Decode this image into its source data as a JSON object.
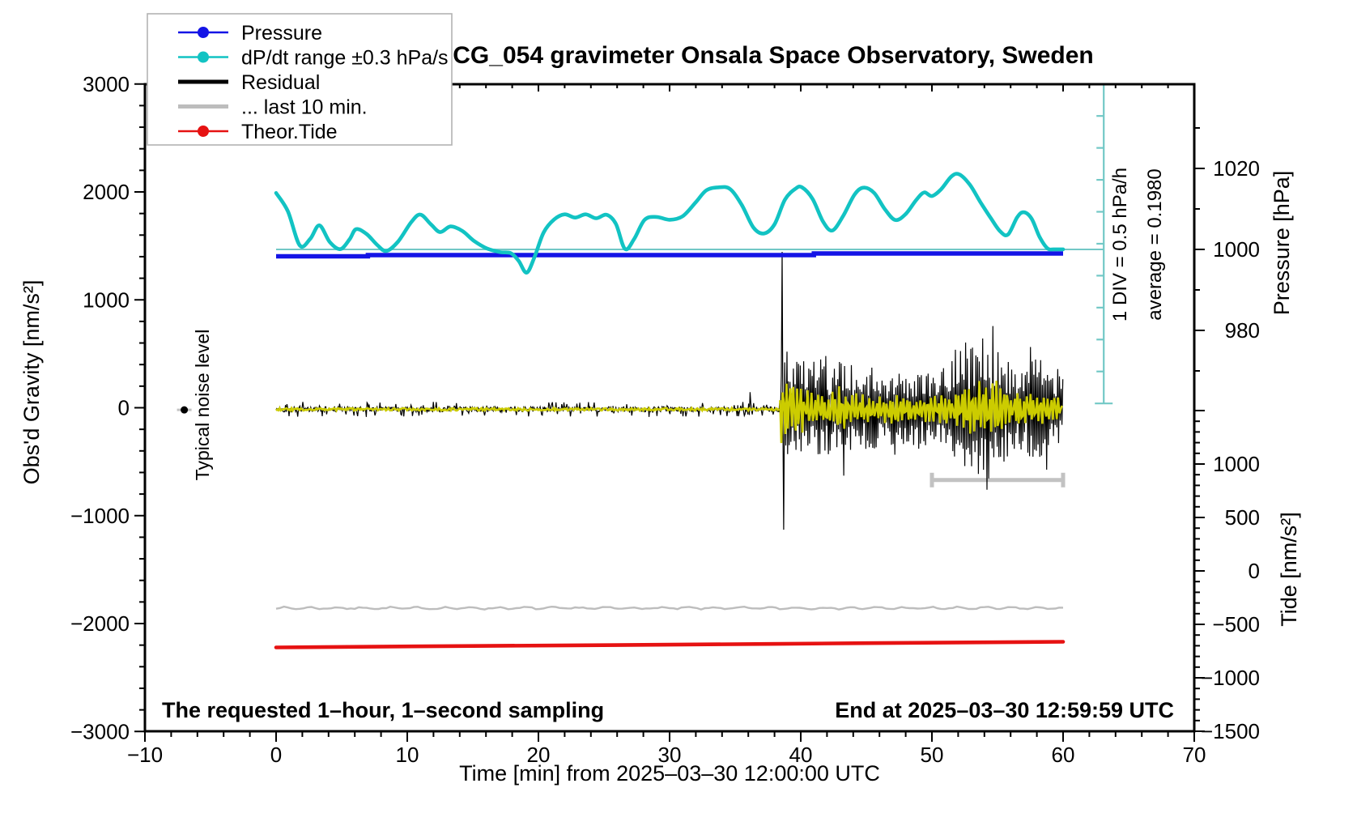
{
  "title": "SCG_054 gravimeter Onsala Space Observatory, Sweden",
  "colors": {
    "pressure_blue": "#1414e6",
    "dpdt_cyan": "#12c3c3",
    "ruler_teal": "#72c8c6",
    "residual_black": "#000000",
    "residual_yellow": "#cccc00",
    "last10_gray": "#bdbdbd",
    "bar_gray": "#c2c2c2",
    "tide_red": "#e61212",
    "legend_border": "#b3b3b3",
    "frame": "#000000"
  },
  "legend": {
    "entries": [
      {
        "label": "Pressure",
        "color_key": "pressure_blue",
        "marker": true,
        "thick": false
      },
      {
        "label": "dP/dt range ±0.3 hPa/s",
        "color_key": "dpdt_cyan",
        "marker": true,
        "thick": false
      },
      {
        "label": "Residual",
        "color_key": "residual_black",
        "marker": false,
        "thick": true
      },
      {
        "label": "... last 10 min.",
        "color_key": "last10_gray",
        "marker": false,
        "thick": true
      },
      {
        "label": "Theor.Tide",
        "color_key": "tide_red",
        "marker": true,
        "thick": false
      }
    ]
  },
  "annotations": {
    "sampling_note": "The requested 1–hour, 1–second sampling",
    "end_note": "End at 2025–03–30 12:59:59 UTC",
    "div_note": "1 DIV = 0.5 hPa/h",
    "average_note": "average = 0.1980",
    "noise_note": "Typical noise level"
  },
  "chart_data": {
    "type": "line",
    "title": "SCG_054 gravimeter Onsala Space Observatory, Sweden",
    "x_axis": {
      "title": "Time [min] from 2025–03–30 12:00:00 UTC",
      "range": [
        -10,
        70
      ],
      "major_ticks": [
        -10,
        0,
        10,
        20,
        30,
        40,
        50,
        60,
        70
      ],
      "tick_labels": [
        "−10",
        "0",
        "10",
        "20",
        "30",
        "40",
        "50",
        "60",
        "70"
      ],
      "minor_interval": 2
    },
    "gravity_axis": {
      "title": "Obs'd Gravity [nm/s²]",
      "range": [
        -3000,
        3000
      ],
      "major_ticks": [
        3000,
        2000,
        1000,
        0,
        -1000,
        -2000,
        -3000
      ],
      "tick_labels": [
        "3000",
        "2000",
        "1000",
        "0",
        "−1000",
        "−2000",
        "−3000"
      ],
      "minor_interval": 200
    },
    "pressure_axis": {
      "title": "Pressure [hPa]",
      "major_ticks": [
        1020,
        1000,
        980
      ],
      "tick_labels": [
        "1020",
        "1000",
        "980"
      ],
      "minor_ticks": [
        1030,
        1010,
        990,
        970
      ]
    },
    "tide_axis": {
      "title": "Tide [nm/s²]",
      "major_ticks": [
        1000,
        500,
        0,
        -500,
        -1000,
        -1500
      ],
      "tick_labels": [
        "1000",
        "500",
        "0",
        "−500",
        "−1000",
        "−1500"
      ],
      "minor_range": [
        1500,
        -1500
      ],
      "minor_interval": 100
    },
    "series": {
      "pressure_hPa": {
        "unit": "hPa",
        "step_points": [
          [
            0,
            998.3
          ],
          [
            7,
            998.3
          ],
          [
            7,
            998.6
          ],
          [
            41,
            998.6
          ],
          [
            41,
            999.0
          ],
          [
            60,
            999.0
          ]
        ]
      },
      "dpdt_reference": {
        "pressure": 1000,
        "t_range": [
          0,
          63.1
        ]
      },
      "dpdt_curve_gravity_units": [
        [
          0,
          1990
        ],
        [
          0.9,
          1820
        ],
        [
          1.8,
          1505
        ],
        [
          2.6,
          1565
        ],
        [
          3.3,
          1690
        ],
        [
          4.1,
          1535
        ],
        [
          4.9,
          1470
        ],
        [
          5.6,
          1560
        ],
        [
          6.1,
          1655
        ],
        [
          6.9,
          1610
        ],
        [
          7.7,
          1510
        ],
        [
          8.4,
          1452
        ],
        [
          9.3,
          1540
        ],
        [
          10.3,
          1720
        ],
        [
          11.0,
          1790
        ],
        [
          11.8,
          1700
        ],
        [
          12.5,
          1628
        ],
        [
          13.3,
          1680
        ],
        [
          14.2,
          1638
        ],
        [
          15.1,
          1545
        ],
        [
          16.1,
          1475
        ],
        [
          17.1,
          1442
        ],
        [
          17.9,
          1432
        ],
        [
          18.5,
          1360
        ],
        [
          19.1,
          1252
        ],
        [
          19.7,
          1395
        ],
        [
          20.4,
          1625
        ],
        [
          21.2,
          1745
        ],
        [
          22.0,
          1792
        ],
        [
          22.8,
          1762
        ],
        [
          23.6,
          1792
        ],
        [
          24.4,
          1756
        ],
        [
          25.2,
          1788
        ],
        [
          25.9,
          1705
        ],
        [
          26.6,
          1472
        ],
        [
          27.3,
          1565
        ],
        [
          28.1,
          1742
        ],
        [
          29.0,
          1768
        ],
        [
          30.0,
          1742
        ],
        [
          31.0,
          1775
        ],
        [
          32.0,
          1905
        ],
        [
          32.8,
          2015
        ],
        [
          33.7,
          2042
        ],
        [
          34.6,
          2028
        ],
        [
          35.5,
          1880
        ],
        [
          36.4,
          1668
        ],
        [
          37.2,
          1615
        ],
        [
          38.0,
          1700
        ],
        [
          38.8,
          1930
        ],
        [
          39.6,
          2030
        ],
        [
          40.1,
          2042
        ],
        [
          40.9,
          1935
        ],
        [
          41.7,
          1725
        ],
        [
          42.4,
          1642
        ],
        [
          43.2,
          1770
        ],
        [
          44.1,
          1975
        ],
        [
          44.8,
          2040
        ],
        [
          45.6,
          1990
        ],
        [
          46.4,
          1842
        ],
        [
          47.2,
          1740
        ],
        [
          48.0,
          1795
        ],
        [
          48.8,
          1925
        ],
        [
          49.4,
          1995
        ],
        [
          50.0,
          1962
        ],
        [
          50.7,
          2025
        ],
        [
          51.5,
          2145
        ],
        [
          52.1,
          2162
        ],
        [
          52.9,
          2065
        ],
        [
          53.7,
          1905
        ],
        [
          54.5,
          1755
        ],
        [
          55.2,
          1635
        ],
        [
          55.8,
          1605
        ],
        [
          56.5,
          1765
        ],
        [
          57.0,
          1812
        ],
        [
          57.6,
          1752
        ],
        [
          58.2,
          1585
        ],
        [
          58.8,
          1478
        ],
        [
          59.3,
          1468
        ],
        [
          60,
          1468
        ]
      ],
      "residual": {
        "quiet": {
          "t_range": [
            0,
            38.4
          ],
          "amplitude": 35,
          "blip": {
            "t_range": [
              36.0,
              36.35
            ],
            "amplitude": 85
          }
        },
        "spike_points": [
          [
            38.45,
            -60
          ],
          [
            38.52,
            300
          ],
          [
            38.58,
            1445
          ],
          [
            38.64,
            -200
          ],
          [
            38.7,
            -1130
          ],
          [
            38.78,
            420
          ],
          [
            38.86,
            -350
          ],
          [
            38.95,
            520
          ],
          [
            39.0,
            -430
          ]
        ],
        "burst_envelope": [
          [
            39,
            430
          ],
          [
            40,
            470
          ],
          [
            40.8,
            390
          ],
          [
            41.6,
            600
          ],
          [
            42.4,
            380
          ],
          [
            43.4,
            500
          ],
          [
            44.4,
            330
          ],
          [
            45.4,
            420
          ],
          [
            46.4,
            300
          ],
          [
            47.4,
            360
          ],
          [
            48.4,
            310
          ],
          [
            49.4,
            330
          ],
          [
            50.4,
            370
          ],
          [
            51.3,
            420
          ],
          [
            52.2,
            680
          ],
          [
            53.0,
            560
          ],
          [
            53.8,
            740
          ],
          [
            54.6,
            620
          ],
          [
            55.3,
            500
          ],
          [
            55.9,
            470
          ],
          [
            56.6,
            380
          ],
          [
            57.3,
            420
          ],
          [
            58.0,
            520
          ],
          [
            58.8,
            430
          ],
          [
            59.4,
            380
          ],
          [
            60,
            300
          ]
        ],
        "yellow_envelope": [
          [
            38.5,
            340
          ],
          [
            39.3,
            300
          ],
          [
            40,
            250
          ],
          [
            41,
            170
          ],
          [
            41.9,
            150
          ],
          [
            43,
            230
          ],
          [
            44,
            200
          ],
          [
            45,
            150
          ],
          [
            46,
            120
          ],
          [
            47,
            160
          ],
          [
            48,
            140
          ],
          [
            49,
            120
          ],
          [
            50,
            150
          ],
          [
            51,
            140
          ],
          [
            52,
            170
          ],
          [
            53,
            280
          ],
          [
            54,
            300
          ],
          [
            54.8,
            280
          ],
          [
            55.5,
            260
          ],
          [
            56.2,
            180
          ],
          [
            57,
            160
          ],
          [
            58,
            170
          ],
          [
            58.8,
            150
          ],
          [
            59.4,
            140
          ],
          [
            60,
            120
          ]
        ],
        "yellow_quiet_amplitude": 12
      },
      "last10_gray_line": {
        "value": -1857,
        "wiggle": 14,
        "t_range": [
          0,
          60
        ]
      },
      "last10_bar": {
        "t_range": [
          50,
          60
        ],
        "value": -670
      },
      "theor_tide": {
        "unit": "nm/s²",
        "points": [
          [
            0,
            -716
          ],
          [
            15,
            -702
          ],
          [
            30,
            -690
          ],
          [
            45,
            -676
          ],
          [
            60,
            -663
          ]
        ]
      },
      "typical_noise_marker": {
        "t": -7,
        "value": -20
      },
      "div_ruler": {
        "t": 63.1,
        "top": 3000,
        "bottom": 40,
        "divisions": 10
      }
    },
    "grid": false,
    "legend_position": "top-left"
  }
}
